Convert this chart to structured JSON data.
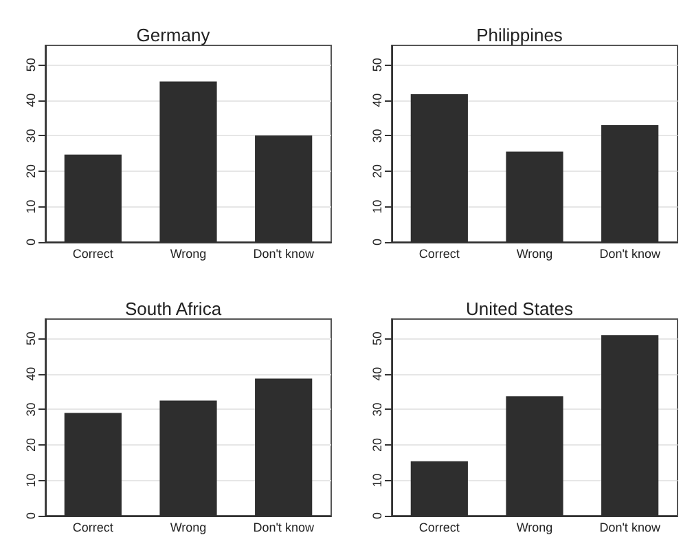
{
  "chart_data": [
    {
      "type": "bar",
      "title": "Germany",
      "categories": [
        "Correct",
        "Wrong",
        "Don't know"
      ],
      "values": [
        24.7,
        45.3,
        30.1
      ],
      "color": "#2e2e2e",
      "ylim": [
        0,
        55.5
      ],
      "yticks": [
        0,
        10,
        20,
        30,
        40,
        50
      ],
      "grid": "y"
    },
    {
      "type": "bar",
      "title": "Philippines",
      "categories": [
        "Correct",
        "Wrong",
        "Don't know"
      ],
      "values": [
        41.7,
        25.5,
        33
      ],
      "color": "#2e2e2e",
      "ylim": [
        0,
        55.5
      ],
      "yticks": [
        0,
        10,
        20,
        30,
        40,
        50
      ],
      "grid": "y"
    },
    {
      "type": "bar",
      "title": "South Africa",
      "categories": [
        "Correct",
        "Wrong",
        "Don't know"
      ],
      "values": [
        29,
        32.5,
        38.7
      ],
      "color": "#2e2e2e",
      "ylim": [
        0,
        55.5
      ],
      "yticks": [
        0,
        10,
        20,
        30,
        40,
        50
      ],
      "grid": "y"
    },
    {
      "type": "bar",
      "title": "United States",
      "categories": [
        "Correct",
        "Wrong",
        "Don't know"
      ],
      "values": [
        15.4,
        33.7,
        51
      ],
      "color": "#2e2e2e",
      "ylim": [
        0,
        55.5
      ],
      "yticks": [
        0,
        10,
        20,
        30,
        40,
        50
      ],
      "grid": "y"
    }
  ]
}
